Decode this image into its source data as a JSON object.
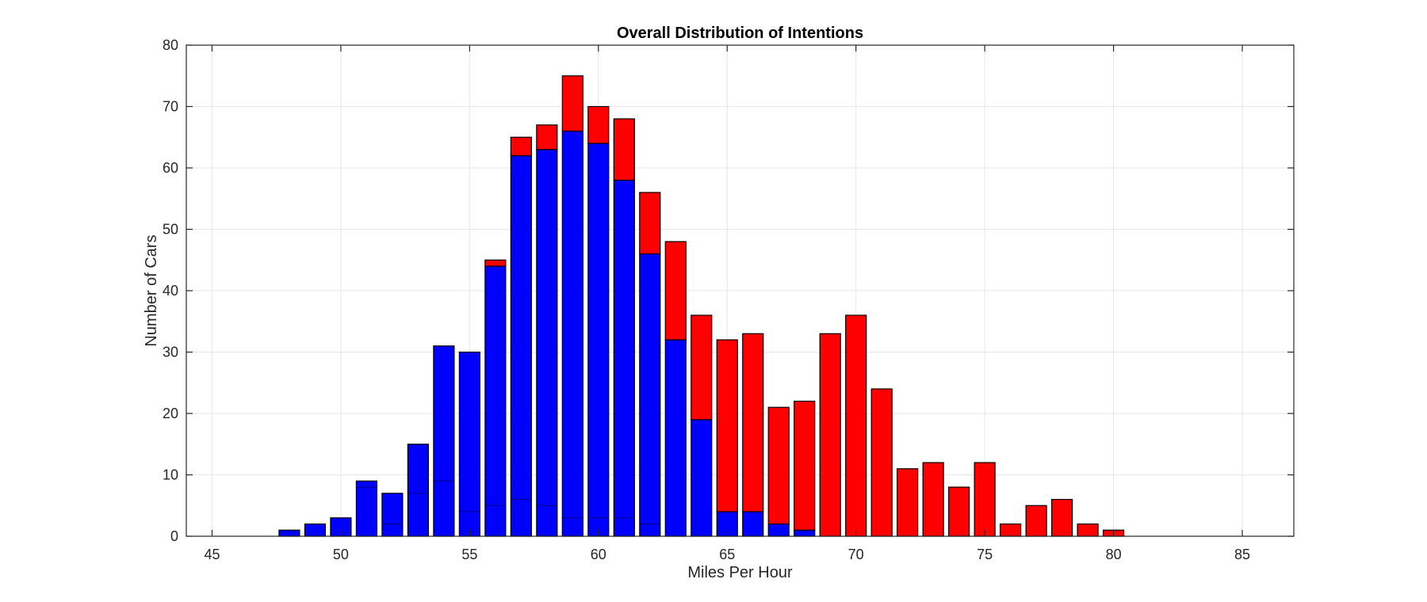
{
  "chart_data": {
    "type": "bar",
    "stacked": true,
    "title": "Overall Distribution of Intentions",
    "xlabel": "Miles Per Hour",
    "ylabel": "Number of Cars",
    "xlim": [
      44,
      87
    ],
    "ylim": [
      0,
      80
    ],
    "xticks": [
      45,
      50,
      55,
      60,
      65,
      70,
      75,
      80,
      85
    ],
    "yticks": [
      0,
      10,
      20,
      30,
      40,
      50,
      60,
      70,
      80
    ],
    "grid": true,
    "x": [
      48,
      49,
      50,
      51,
      52,
      53,
      54,
      55,
      56,
      57,
      58,
      59,
      60,
      61,
      62,
      63,
      64,
      65,
      66,
      67,
      68,
      69,
      70,
      71,
      72,
      73,
      74,
      75,
      76,
      77,
      78,
      79,
      80
    ],
    "series": [
      {
        "color": "#0000ff",
        "values": [
          1,
          2,
          3,
          9,
          7,
          15,
          31,
          30,
          44,
          62,
          63,
          66,
          64,
          58,
          46,
          32,
          19,
          4,
          4,
          2,
          1,
          0,
          0,
          0,
          0,
          0,
          0,
          0,
          0,
          0,
          0,
          0,
          0
        ]
      },
      {
        "color": "#ff0000",
        "values": [
          0,
          0,
          0,
          0,
          0,
          0,
          0,
          0,
          1,
          3,
          4,
          9,
          6,
          10,
          10,
          16,
          17,
          28,
          29,
          19,
          21,
          33,
          36,
          24,
          11,
          12,
          8,
          12,
          2,
          5,
          6,
          2,
          1
        ]
      }
    ],
    "inner_marks": {
      "x": [
        51,
        52,
        53,
        54,
        55,
        56,
        57,
        58,
        59,
        60,
        61,
        62
      ],
      "values": [
        8,
        2,
        7,
        9,
        4,
        5,
        6,
        5,
        3,
        3,
        3,
        2
      ]
    }
  }
}
